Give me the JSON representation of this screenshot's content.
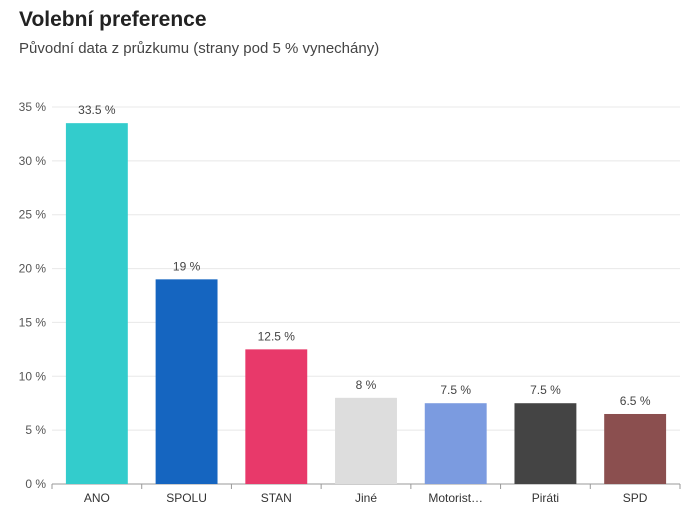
{
  "header": {
    "title": "Volební preference",
    "subtitle": "Původní data z průzkumu (strany pod 5 % vynechány)"
  },
  "chart_data": {
    "type": "bar",
    "title": "Volební preference",
    "subtitle": "Původní data z průzkumu (strany pod 5 % vynechány)",
    "xlabel": "",
    "ylabel": "",
    "ylim": [
      0,
      35
    ],
    "yticks": [
      "0 %",
      "5 %",
      "10 %",
      "15 %",
      "20 %",
      "25 %",
      "30 %",
      "35 %"
    ],
    "categories": [
      "ANO",
      "SPOLU",
      "STAN",
      "Jiné",
      "Motorist…",
      "Piráti",
      "SPD"
    ],
    "values": [
      33.5,
      19,
      12.5,
      8,
      7.5,
      7.5,
      6.5
    ],
    "data_labels": [
      "33.5 %",
      "19 %",
      "12.5 %",
      "8 %",
      "7.5 %",
      "7.5 %",
      "6.5 %"
    ],
    "colors": [
      "#33CCCC",
      "#1565C0",
      "#E8396A",
      "#DDDDDD",
      "#7B9BE0",
      "#444444",
      "#8B4F4F"
    ],
    "grid": true,
    "legend": "none"
  }
}
